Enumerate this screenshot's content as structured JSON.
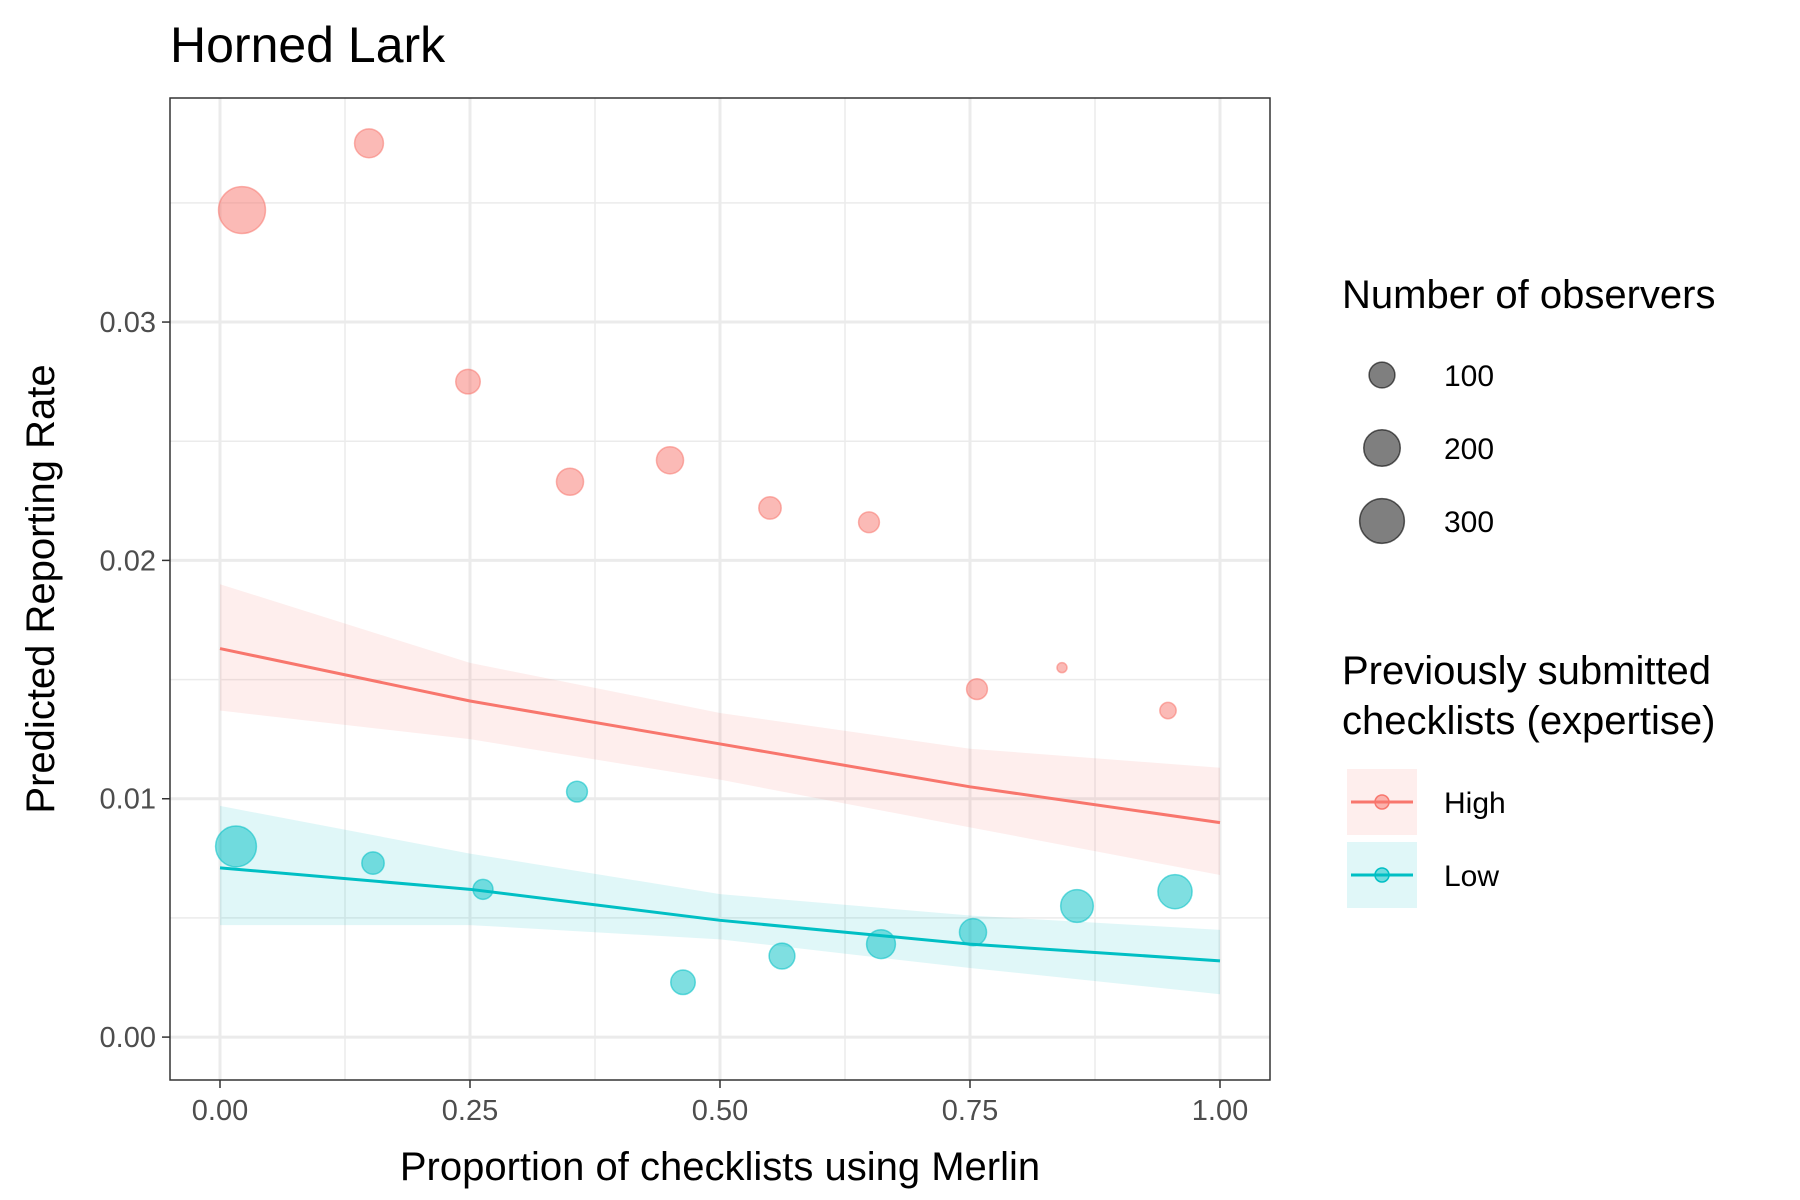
{
  "chart_data": {
    "type": "scatter",
    "title": "Horned Lark",
    "xlabel": "Proportion of checklists using Merlin",
    "ylabel": "Predicted Reporting Rate",
    "xlim": [
      -0.05,
      1.05
    ],
    "ylim": [
      -0.0018,
      0.0394
    ],
    "x_ticks": [
      0.0,
      0.25,
      0.5,
      0.75,
      1.0
    ],
    "x_tick_labels": [
      "0.00",
      "0.25",
      "0.50",
      "0.75",
      "1.00"
    ],
    "y_ticks": [
      0.0,
      0.01,
      0.02,
      0.03
    ],
    "y_tick_labels": [
      "0.00",
      "0.01",
      "0.02",
      "0.03"
    ],
    "grid": true,
    "legend_placement": "right",
    "size_legend": {
      "title": "Number of observers",
      "entries": [
        {
          "label": "100",
          "value": 100
        },
        {
          "label": "200",
          "value": 200
        },
        {
          "label": "300",
          "value": 300
        }
      ]
    },
    "color_legend": {
      "title_lines": [
        "Previously submitted",
        "checklists (expertise)"
      ],
      "entries": [
        {
          "label": "High",
          "color": "#F8766D"
        },
        {
          "label": "Low",
          "color": "#00BFC4"
        }
      ]
    },
    "series": [
      {
        "name": "High",
        "color": "#F8766D",
        "points": [
          {
            "x": 0.022,
            "y": 0.0347,
            "n": 330
          },
          {
            "x": 0.149,
            "y": 0.0375,
            "n": 125
          },
          {
            "x": 0.248,
            "y": 0.0275,
            "n": 90
          },
          {
            "x": 0.35,
            "y": 0.0233,
            "n": 110
          },
          {
            "x": 0.45,
            "y": 0.0242,
            "n": 110
          },
          {
            "x": 0.55,
            "y": 0.0222,
            "n": 75
          },
          {
            "x": 0.649,
            "y": 0.0216,
            "n": 65
          },
          {
            "x": 0.757,
            "y": 0.0146,
            "n": 65
          },
          {
            "x": 0.842,
            "y": 0.0155,
            "n": 15
          },
          {
            "x": 0.948,
            "y": 0.0137,
            "n": 40
          }
        ],
        "fit": {
          "x": [
            0.0,
            0.25,
            0.5,
            0.75,
            1.0
          ],
          "y": [
            0.0163,
            0.0141,
            0.0123,
            0.0105,
            0.009
          ]
        },
        "ci_upper": [
          0.019,
          0.0157,
          0.0136,
          0.0121,
          0.0113
        ],
        "ci_lower": [
          0.0137,
          0.0125,
          0.0108,
          0.0088,
          0.0068
        ]
      },
      {
        "name": "Low",
        "color": "#00BFC4",
        "points": [
          {
            "x": 0.016,
            "y": 0.008,
            "n": 250
          },
          {
            "x": 0.153,
            "y": 0.0073,
            "n": 75
          },
          {
            "x": 0.263,
            "y": 0.0062,
            "n": 60
          },
          {
            "x": 0.357,
            "y": 0.0103,
            "n": 65
          },
          {
            "x": 0.463,
            "y": 0.0023,
            "n": 90
          },
          {
            "x": 0.562,
            "y": 0.0034,
            "n": 100
          },
          {
            "x": 0.661,
            "y": 0.0039,
            "n": 125
          },
          {
            "x": 0.753,
            "y": 0.0044,
            "n": 110
          },
          {
            "x": 0.857,
            "y": 0.0055,
            "n": 160
          },
          {
            "x": 0.955,
            "y": 0.0061,
            "n": 175
          }
        ],
        "fit": {
          "x": [
            0.0,
            0.25,
            0.5,
            0.75,
            1.0
          ],
          "y": [
            0.0071,
            0.0062,
            0.0049,
            0.0039,
            0.0032
          ]
        },
        "ci_upper": [
          0.0097,
          0.0077,
          0.006,
          0.0051,
          0.0045
        ],
        "ci_lower": [
          0.0047,
          0.0047,
          0.0041,
          0.0029,
          0.0018
        ]
      }
    ]
  }
}
